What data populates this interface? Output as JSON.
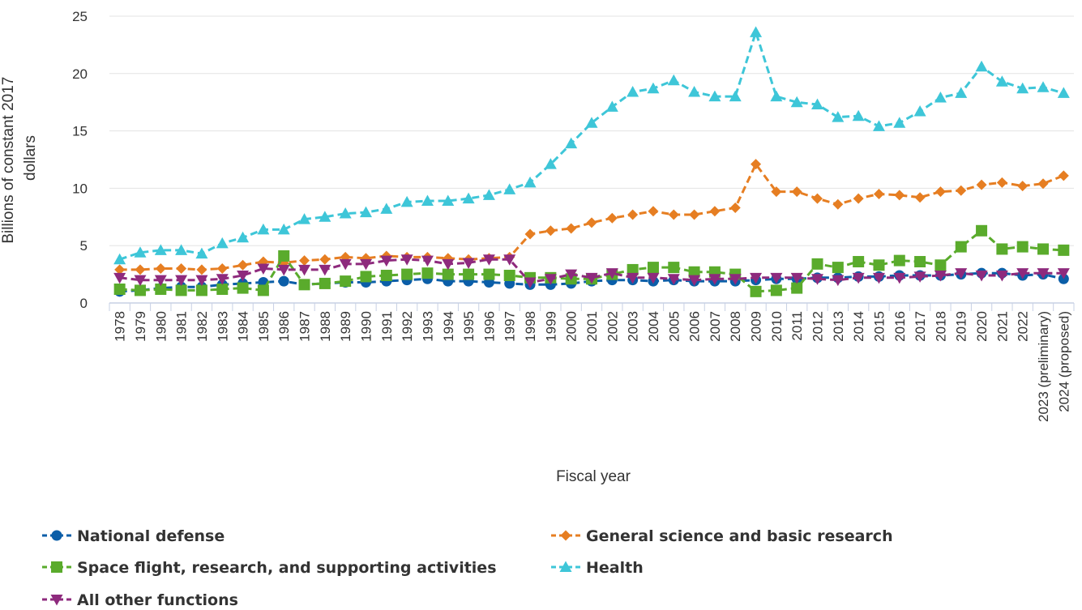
{
  "chart_data": {
    "type": "line",
    "title": "",
    "xlabel": "Fiscal year",
    "ylabel": "Billions of constant 2017 dollars",
    "ylim": [
      0,
      25
    ],
    "yticks": [
      0,
      5,
      10,
      15,
      20,
      25
    ],
    "grid": "horizontal",
    "legend_position": "bottom",
    "categories": [
      "1978",
      "1979",
      "1980",
      "1981",
      "1982",
      "1983",
      "1984",
      "1985",
      "1986",
      "1987",
      "1988",
      "1989",
      "1990",
      "1991",
      "1992",
      "1993",
      "1994",
      "1995",
      "1996",
      "1997",
      "1998",
      "1999",
      "2000",
      "2001",
      "2002",
      "2003",
      "2004",
      "2005",
      "2006",
      "2007",
      "2008",
      "2009",
      "2010",
      "2011",
      "2012",
      "2013",
      "2014",
      "2015",
      "2016",
      "2017",
      "2018",
      "2019",
      "2020",
      "2021",
      "2022",
      "2023 (preliminary)",
      "2024 (proposed)"
    ],
    "series": [
      {
        "name": "National defense",
        "color": "#0b5ea8",
        "marker": "circle",
        "values": [
          1.0,
          1.1,
          1.3,
          1.4,
          1.4,
          1.6,
          1.7,
          1.8,
          1.9,
          1.6,
          1.7,
          1.8,
          1.8,
          1.9,
          2.0,
          2.1,
          1.9,
          1.9,
          1.8,
          1.7,
          1.6,
          1.6,
          1.7,
          1.9,
          2.0,
          2.0,
          1.9,
          2.0,
          1.9,
          1.9,
          1.9,
          2.0,
          2.1,
          2.1,
          2.2,
          2.2,
          2.3,
          2.3,
          2.4,
          2.4,
          2.4,
          2.5,
          2.6,
          2.6,
          2.4,
          2.5,
          2.1
        ]
      },
      {
        "name": "General science and basic research",
        "color": "#e67e22",
        "marker": "diamond",
        "values": [
          2.9,
          2.9,
          3.0,
          3.0,
          2.9,
          3.0,
          3.3,
          3.6,
          3.5,
          3.7,
          3.8,
          4.0,
          3.9,
          4.1,
          4.0,
          4.0,
          3.9,
          3.8,
          3.9,
          4.0,
          6.0,
          6.3,
          6.5,
          7.0,
          7.4,
          7.7,
          8.0,
          7.7,
          7.7,
          8.0,
          8.3,
          12.1,
          9.7,
          9.7,
          9.1,
          8.6,
          9.1,
          9.5,
          9.4,
          9.2,
          9.7,
          9.8,
          10.3,
          10.5,
          10.2,
          10.4,
          11.1
        ]
      },
      {
        "name": "Space flight, research, and supporting activities",
        "color": "#5aab2c",
        "marker": "square",
        "values": [
          1.2,
          1.1,
          1.2,
          1.1,
          1.1,
          1.2,
          1.3,
          1.1,
          4.1,
          1.6,
          1.7,
          1.9,
          2.3,
          2.4,
          2.5,
          2.6,
          2.5,
          2.5,
          2.5,
          2.4,
          2.2,
          2.2,
          2.1,
          2.1,
          2.5,
          2.9,
          3.1,
          3.1,
          2.7,
          2.7,
          2.5,
          1.0,
          1.1,
          1.3,
          3.4,
          3.1,
          3.6,
          3.3,
          3.7,
          3.6,
          3.3,
          4.9,
          6.3,
          4.7,
          4.9,
          4.7,
          4.6
        ]
      },
      {
        "name": "Health",
        "color": "#3ec6d8",
        "marker": "triangle-up",
        "values": [
          3.8,
          4.4,
          4.6,
          4.6,
          4.3,
          5.2,
          5.7,
          6.4,
          6.4,
          7.3,
          7.5,
          7.8,
          7.9,
          8.2,
          8.8,
          8.9,
          8.9,
          9.1,
          9.4,
          9.9,
          10.5,
          12.1,
          13.9,
          15.7,
          17.1,
          18.4,
          18.7,
          19.4,
          18.4,
          18.0,
          18.0,
          23.6,
          18.0,
          17.5,
          17.3,
          16.2,
          16.3,
          15.4,
          15.7,
          16.7,
          17.9,
          18.3,
          20.6,
          19.3,
          18.7,
          18.8,
          18.3
        ]
      },
      {
        "name": "All other functions",
        "color": "#8e2a7d",
        "marker": "triangle-down",
        "values": [
          2.2,
          2.0,
          2.0,
          2.0,
          2.0,
          2.1,
          2.4,
          3.0,
          2.9,
          2.9,
          2.9,
          3.4,
          3.4,
          3.7,
          3.8,
          3.7,
          3.4,
          3.5,
          3.8,
          3.8,
          1.8,
          2.1,
          2.5,
          2.2,
          2.6,
          2.2,
          2.2,
          2.1,
          2.0,
          2.1,
          2.1,
          2.2,
          2.2,
          2.2,
          2.1,
          2.0,
          2.2,
          2.2,
          2.2,
          2.3,
          2.4,
          2.6,
          2.4,
          2.4,
          2.6,
          2.6,
          2.6
        ]
      }
    ]
  }
}
